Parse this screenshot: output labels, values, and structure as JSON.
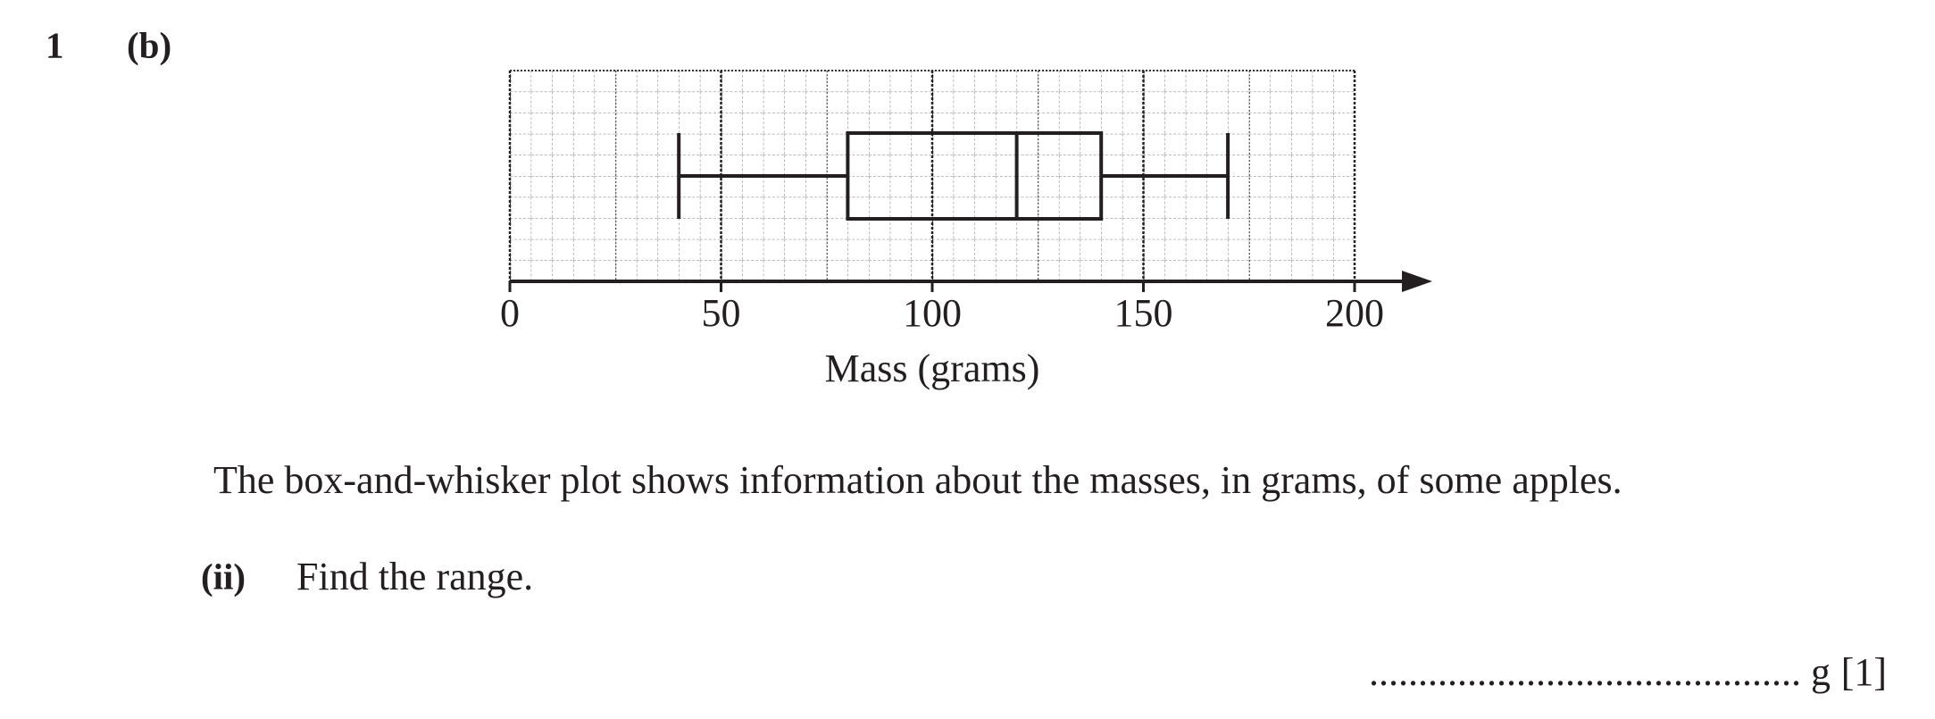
{
  "question": {
    "number": "1",
    "part": "(b)",
    "stem": "The box-and-whisker plot shows information about the masses, in grams, of some apples.",
    "subpart": "(ii)",
    "prompt": "Find the range.",
    "answer_line": "............................................ g",
    "marks": "[1]"
  },
  "chart_data": {
    "type": "box",
    "orientation": "horizontal",
    "xlabel": "Mass (grams)",
    "min": 40,
    "q1": 80,
    "median": 120,
    "q3": 140,
    "max": 170,
    "xlim": [
      0,
      200
    ],
    "xticks": [
      0,
      50,
      100,
      150,
      200
    ],
    "grid": true,
    "color": "#231f20"
  }
}
